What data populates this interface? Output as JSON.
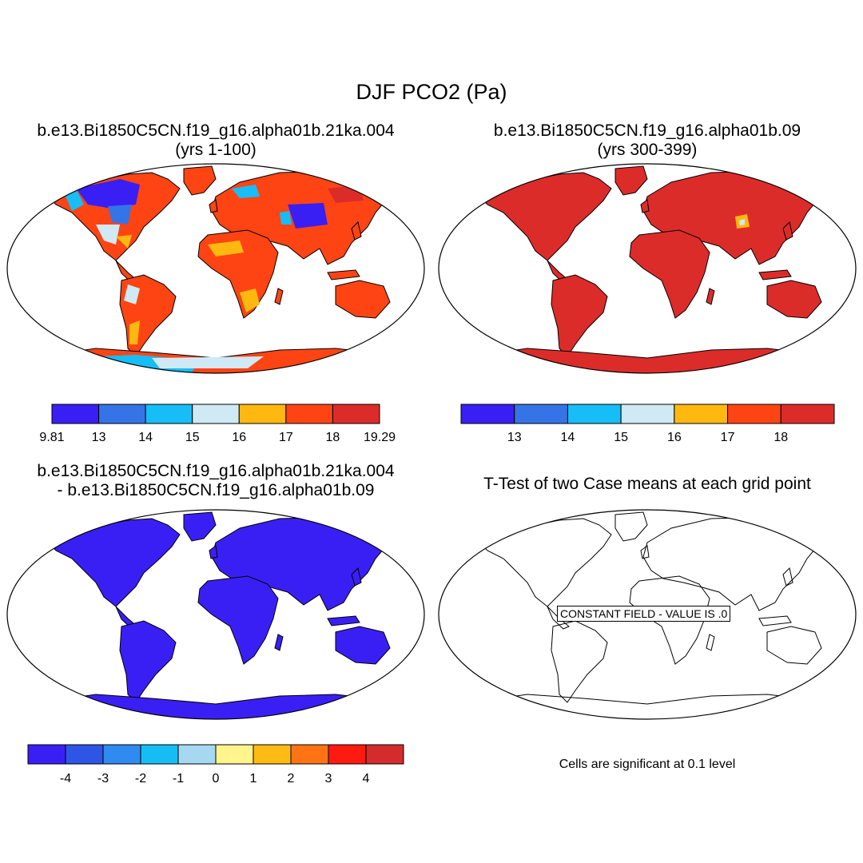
{
  "figure_title": "DJF PCO2 (Pa)",
  "panels": [
    {
      "title_line1": "b.e13.Bi1850C5CN.f19_g16.alpha01b.21ka.004",
      "title_line2": "(yrs 1-100)"
    },
    {
      "title_line1": "b.e13.Bi1850C5CN.f19_g16.alpha01b.09",
      "title_line2": "(yrs 300-399)"
    },
    {
      "title_line1": "b.e13.Bi1850C5CN.f19_g16.alpha01b.21ka.004",
      "title_line2": "- b.e13.Bi1850C5CN.f19_g16.alpha01b.09"
    },
    {
      "title_line1": "T-Test of two Case means at each grid point",
      "title_line2": ""
    }
  ],
  "colorbars": [
    {
      "colors": [
        "#3a1ff5",
        "#3574e6",
        "#17bdf7",
        "#cfe9f5",
        "#ffb80f",
        "#ff4414",
        "#dc2c2a"
      ],
      "labels": [
        "9.81",
        "13",
        "14",
        "15",
        "16",
        "17",
        "18",
        "19.29"
      ]
    },
    {
      "colors": [
        "#3a1ff5",
        "#3574e6",
        "#17bdf7",
        "#cfe9f5",
        "#ffb80f",
        "#ff4414",
        "#dc2c2a"
      ],
      "labels": [
        "13",
        "14",
        "15",
        "16",
        "17",
        "18"
      ]
    },
    {
      "colors": [
        "#3a1ff5",
        "#2e55e6",
        "#2f8bf0",
        "#16bdf5",
        "#a6d8f2",
        "#fff58c",
        "#ffbb14",
        "#ff7314",
        "#ff1a0f",
        "#d42c2c"
      ],
      "labels": [
        "-4",
        "-3",
        "-2",
        "-1",
        "0",
        "1",
        "2",
        "3",
        "4"
      ]
    }
  ],
  "constant_field_label": "CONSTANT FIELD - VALUE IS .0",
  "significance_note": "Cells are significant at 0.1 level",
  "fill_colors": {
    "panel1_base": "#ff4414",
    "panel1_high": "#dc2c2a",
    "panel1_low": "#3a1ff5",
    "panel1_mid": "#3574e6",
    "panel1_cyan": "#17bdf7",
    "panel1_pale": "#cfe9f5",
    "panel1_orange": "#ffb80f",
    "panel2_base": "#dc2c2a",
    "panel3_base": "#3a1ff5"
  }
}
